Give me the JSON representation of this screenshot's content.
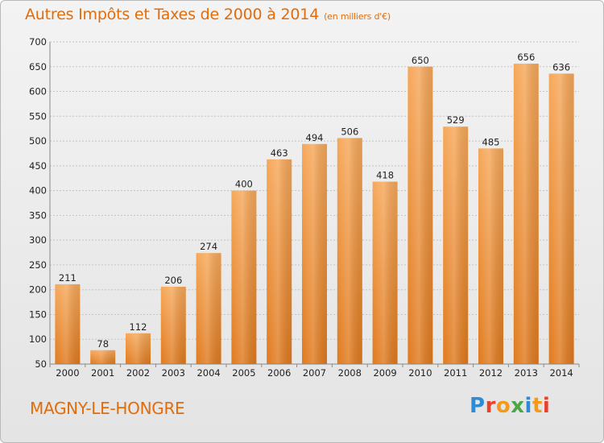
{
  "title": "Autres Impôts et Taxes de 2000 à 2014",
  "unit": "(en milliers d'€)",
  "place": "MAGNY-LE-HONGRE",
  "logo": [
    "P",
    "r",
    "o",
    "x",
    "i",
    "t",
    "i"
  ],
  "colors": {
    "bar_top": "#f6a85a",
    "bar_bottom": "#e07a1e",
    "accent": "#e36c0a"
  },
  "chart_data": {
    "type": "bar",
    "categories": [
      "2000",
      "2001",
      "2002",
      "2003",
      "2004",
      "2005",
      "2006",
      "2007",
      "2008",
      "2009",
      "2010",
      "2011",
      "2012",
      "2013",
      "2014"
    ],
    "values": [
      211,
      78,
      112,
      206,
      274,
      400,
      463,
      494,
      506,
      418,
      650,
      529,
      485,
      656,
      636
    ],
    "title": "Autres Impôts et Taxes de 2000 à 2014",
    "xlabel": "",
    "ylabel": "",
    "ylim": [
      50,
      700
    ],
    "yticks": [
      50,
      100,
      150,
      200,
      250,
      300,
      350,
      400,
      450,
      500,
      550,
      600,
      650,
      700
    ],
    "grid": true
  }
}
